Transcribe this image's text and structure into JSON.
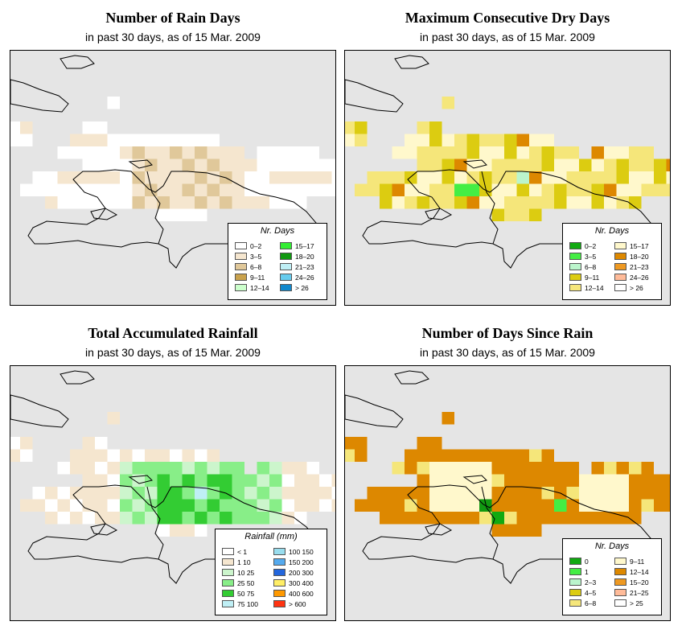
{
  "panels": [
    {
      "title": "Number of Rain Days",
      "subtitle": "in past 30 days, as of  15 Mar. 2009",
      "legend": {
        "title": "Nr. Days",
        "items": [
          {
            "label": "0–2",
            "color": "#ffffff"
          },
          {
            "label": "3–5",
            "color": "#f5e6cf"
          },
          {
            "label": "6–8",
            "color": "#e0c89a"
          },
          {
            "label": "9–11",
            "color": "#c9a24d"
          },
          {
            "label": "12–14",
            "color": "#ccffcc"
          },
          {
            "label": "15–17",
            "color": "#33ee33"
          },
          {
            "label": "18–20",
            "color": "#119911"
          },
          {
            "label": "21–23",
            "color": "#bfeff5"
          },
          {
            "label": "24–26",
            "color": "#66ccee"
          },
          {
            "label": "> 26",
            "color": "#1188cc"
          }
        ]
      }
    },
    {
      "title": "Maximum Consecutive Dry Days",
      "subtitle": "in past 30 days, as of  15 Mar. 2009",
      "legend": {
        "title": "Nr. Days",
        "items": [
          {
            "label": "0–2",
            "color": "#11aa11"
          },
          {
            "label": "3–5",
            "color": "#44ee44"
          },
          {
            "label": "6–8",
            "color": "#bbf5cc"
          },
          {
            "label": "9–11",
            "color": "#dccc11"
          },
          {
            "label": "12–14",
            "color": "#f5e67a"
          },
          {
            "label": "15–17",
            "color": "#fff8cc"
          },
          {
            "label": "18–20",
            "color": "#dd8800"
          },
          {
            "label": "21–23",
            "color": "#ee9922"
          },
          {
            "label": "24–26",
            "color": "#ffbb99"
          },
          {
            "label": "> 26",
            "color": "#ffffff"
          }
        ]
      }
    },
    {
      "title": "Total Accumulated Rainfall",
      "subtitle": "in past 30 days, as of  15 Mar. 2009",
      "legend": {
        "title": "Rainfall (mm)",
        "items": [
          {
            "label": "< 1",
            "color": "#ffffff"
          },
          {
            "label": "1    10",
            "color": "#f5e6cf"
          },
          {
            "label": "10   25",
            "color": "#ccf5cc"
          },
          {
            "label": "25   50",
            "color": "#88ee88"
          },
          {
            "label": "50   75",
            "color": "#33cc33"
          },
          {
            "label": "75  100",
            "color": "#bfeff5"
          },
          {
            "label": "100  150",
            "color": "#99ddee"
          },
          {
            "label": "150  200",
            "color": "#55aaee"
          },
          {
            "label": "200  300",
            "color": "#2266dd"
          },
          {
            "label": "300  400",
            "color": "#ffee66"
          },
          {
            "label": "400  600",
            "color": "#ff9900"
          },
          {
            "label": "> 600",
            "color": "#ff3311"
          }
        ]
      }
    },
    {
      "title": "Number of Days Since Rain",
      "subtitle": "in past 30 days, as of  15 Mar. 2009",
      "legend": {
        "title": "Nr. Days",
        "items": [
          {
            "label": "0",
            "color": "#11aa11"
          },
          {
            "label": "1",
            "color": "#44ee44"
          },
          {
            "label": "2–3",
            "color": "#bbf5cc"
          },
          {
            "label": "4–5",
            "color": "#dccc11"
          },
          {
            "label": "6–8",
            "color": "#f5e67a"
          },
          {
            "label": "9–11",
            "color": "#fff8cc"
          },
          {
            "label": "12–14",
            "color": "#dd8800"
          },
          {
            "label": "15–20",
            "color": "#ee9922"
          },
          {
            "label": "21–25",
            "color": "#ffbb99"
          },
          {
            "label": "> 25",
            "color": "#ffffff"
          }
        ]
      }
    }
  ]
}
